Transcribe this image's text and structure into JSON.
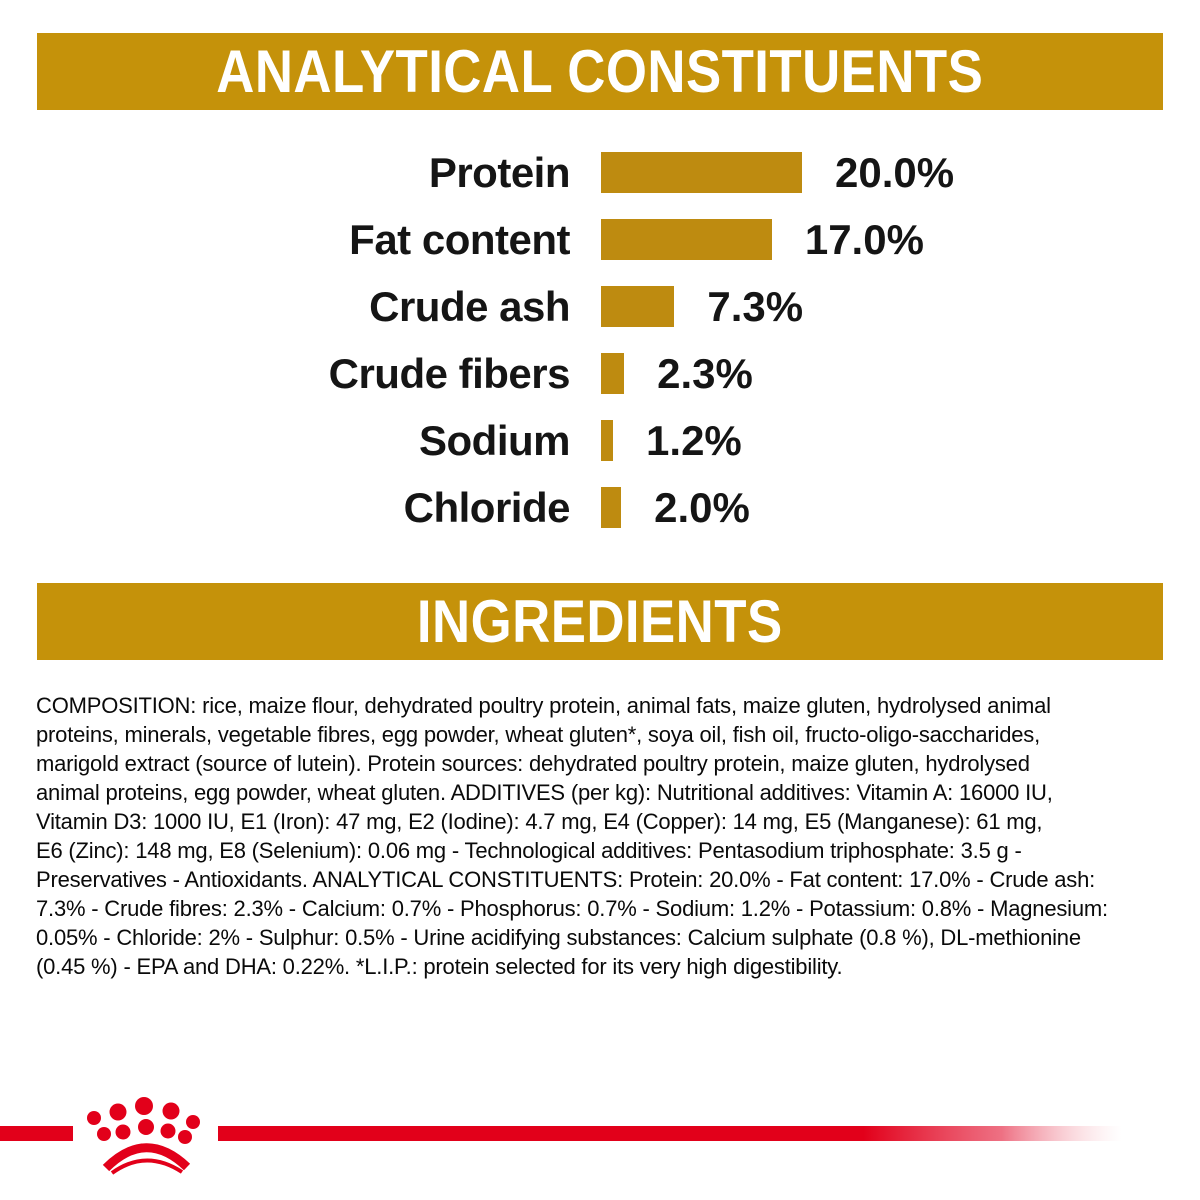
{
  "colors": {
    "banner_gold": "#C5920A",
    "bar_gold": "#BE8B10",
    "brand_red": "#E2001A",
    "ink": "#151515"
  },
  "banners": {
    "analytical": "ANALYTICAL CONSTITUENTS",
    "ingredients": "INGREDIENTS"
  },
  "chart_data": {
    "type": "bar",
    "orientation": "horizontal",
    "title": "ANALYTICAL CONSTITUENTS",
    "categories": [
      "Protein",
      "Fat content",
      "Crude ash",
      "Crude fibers",
      "Sodium",
      "Chloride"
    ],
    "values": [
      20.0,
      17.0,
      7.3,
      2.3,
      1.2,
      2.0
    ],
    "value_labels": [
      "20.0%",
      "17.0%",
      "7.3%",
      "2.3%",
      "1.2%",
      "2.0%"
    ],
    "unit": "%",
    "xlim": [
      0,
      20
    ],
    "bar_color": "#BE8B10",
    "grid": false,
    "legend": false
  },
  "ingredients": {
    "lines": [
      "COMPOSITION: rice, maize flour, dehydrated poultry protein, animal fats, maize gluten, hydrolysed animal",
      "proteins, minerals, vegetable fibres, egg powder, wheat gluten*, soya oil, fish oil, fructo-oligo-saccharides,",
      "marigold extract (source of lutein). Protein sources: dehydrated poultry protein, maize gluten, hydrolysed",
      "animal proteins, egg powder, wheat gluten. ADDITIVES (per kg): Nutritional additives: Vitamin A: 16000 IU,",
      "Vitamin D3: 1000 IU, E1 (Iron): 47 mg, E2 (Iodine): 4.7 mg, E4 (Copper): 14 mg, E5 (Manganese): 61 mg,",
      "E6 (Zinc): 148 mg, E8 (Selenium): 0.06 mg - Technological additives: Pentasodium triphosphate: 3.5 g -",
      "Preservatives - Antioxidants. ANALYTICAL CONSTITUENTS: Protein: 20.0% - Fat content: 17.0% - Crude ash:",
      "7.3% - Crude fibres: 2.3% - Calcium: 0.7% - Phosphorus: 0.7% - Sodium: 1.2% - Potassium: 0.8% - Magnesium:",
      "0.05% - Chloride: 2% - Sulphur: 0.5% - Urine acidifying substances: Calcium sulphate (0.8 %), DL-methionine",
      "(0.45 %) - EPA and DHA: 0.22%. *L.I.P.: protein selected for its very high digestibility."
    ]
  },
  "footer": {
    "logo": "royal-canin-crown"
  }
}
